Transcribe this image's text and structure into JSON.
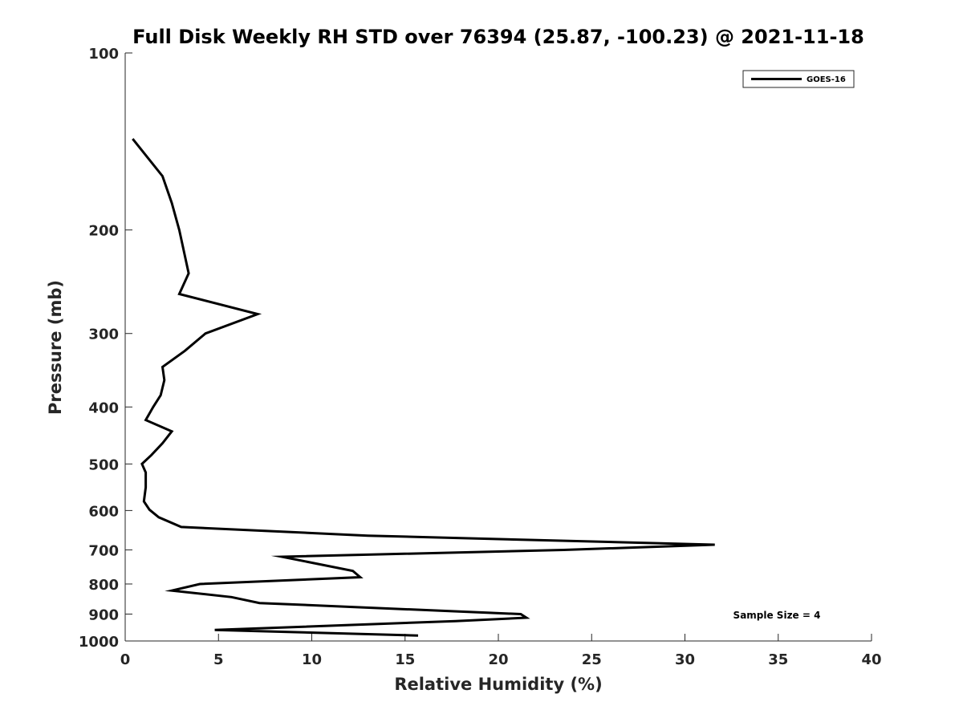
{
  "chart_data": {
    "type": "line",
    "title": "Full Disk Weekly RH STD over 76394 (25.87, -100.23) @ 2021-11-18",
    "xlabel": "Relative Humidity (%)",
    "ylabel": "Pressure (mb)",
    "xlim": [
      0,
      40
    ],
    "ylim": [
      100,
      1000
    ],
    "y_scale": "log",
    "y_reversed": true,
    "x_ticks": [
      0,
      5,
      10,
      15,
      20,
      25,
      30,
      35,
      40
    ],
    "y_ticks": [
      100,
      200,
      300,
      400,
      500,
      600,
      700,
      800,
      900,
      1000
    ],
    "grid": false,
    "legend_position": "top-right",
    "annotation": "Sample Size = 4",
    "series": [
      {
        "name": "GOES-16",
        "color": "#000000",
        "points": [
          {
            "x": 0.4,
            "y": 140
          },
          {
            "x": 2.0,
            "y": 162
          },
          {
            "x": 2.5,
            "y": 180
          },
          {
            "x": 2.9,
            "y": 200
          },
          {
            "x": 3.4,
            "y": 237
          },
          {
            "x": 2.9,
            "y": 257
          },
          {
            "x": 7.1,
            "y": 278
          },
          {
            "x": 4.3,
            "y": 300
          },
          {
            "x": 3.2,
            "y": 321
          },
          {
            "x": 2.0,
            "y": 342
          },
          {
            "x": 2.1,
            "y": 360
          },
          {
            "x": 1.9,
            "y": 382
          },
          {
            "x": 1.5,
            "y": 400
          },
          {
            "x": 1.1,
            "y": 421
          },
          {
            "x": 2.5,
            "y": 440
          },
          {
            "x": 2.0,
            "y": 461
          },
          {
            "x": 1.4,
            "y": 483
          },
          {
            "x": 0.9,
            "y": 500
          },
          {
            "x": 1.1,
            "y": 517
          },
          {
            "x": 1.1,
            "y": 548
          },
          {
            "x": 1.0,
            "y": 579
          },
          {
            "x": 1.3,
            "y": 598
          },
          {
            "x": 1.8,
            "y": 616
          },
          {
            "x": 3.0,
            "y": 640
          },
          {
            "x": 13.0,
            "y": 662
          },
          {
            "x": 31.6,
            "y": 686
          },
          {
            "x": 23.5,
            "y": 700
          },
          {
            "x": 8.4,
            "y": 719
          },
          {
            "x": 12.2,
            "y": 760
          },
          {
            "x": 12.6,
            "y": 779
          },
          {
            "x": 4.0,
            "y": 800
          },
          {
            "x": 2.5,
            "y": 821
          },
          {
            "x": 5.7,
            "y": 842
          },
          {
            "x": 7.2,
            "y": 862
          },
          {
            "x": 21.2,
            "y": 900
          },
          {
            "x": 21.5,
            "y": 913
          },
          {
            "x": 17.7,
            "y": 925
          },
          {
            "x": 4.8,
            "y": 958
          },
          {
            "x": 15.7,
            "y": 979
          }
        ]
      }
    ]
  }
}
